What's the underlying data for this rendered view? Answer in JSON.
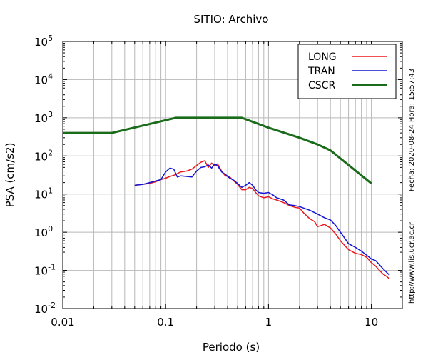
{
  "chart_data": {
    "type": "line",
    "title": "SITIO: Archivo",
    "xlabel": "Periodo (s)",
    "ylabel": "PSA (cm/s2)",
    "x_scale": "log",
    "y_scale": "log",
    "xlim": [
      0.01,
      20
    ],
    "ylim": [
      0.01,
      100000
    ],
    "x_ticks": [
      {
        "value": 0.01,
        "label": "0.01"
      },
      {
        "value": 0.1,
        "label": "0.1"
      },
      {
        "value": 1,
        "label": "1"
      },
      {
        "value": 10,
        "label": "10"
      }
    ],
    "y_ticks": [
      {
        "value": 0.01,
        "base": "10",
        "exp": "-2"
      },
      {
        "value": 0.1,
        "base": "10",
        "exp": "-1"
      },
      {
        "value": 1,
        "base": "10",
        "exp": "0"
      },
      {
        "value": 10,
        "base": "10",
        "exp": "1"
      },
      {
        "value": 100,
        "base": "10",
        "exp": "2"
      },
      {
        "value": 1000,
        "base": "10",
        "exp": "3"
      },
      {
        "value": 10000,
        "base": "10",
        "exp": "4"
      },
      {
        "value": 100000,
        "base": "10",
        "exp": "5"
      }
    ],
    "grid": true,
    "legend_position": "top-right",
    "side_annotations": {
      "date": "Fecha: 2020-08-24 Hora: 15:57:43",
      "url": "http://www.lis.ucr.ac.cr"
    },
    "series": [
      {
        "name": "LONG",
        "color": "#e8191c",
        "x": [
          0.05,
          0.06,
          0.07,
          0.08,
          0.09,
          0.1,
          0.11,
          0.12,
          0.14,
          0.16,
          0.18,
          0.2,
          0.22,
          0.24,
          0.26,
          0.28,
          0.3,
          0.32,
          0.35,
          0.38,
          0.42,
          0.46,
          0.5,
          0.55,
          0.6,
          0.65,
          0.7,
          0.75,
          0.8,
          0.9,
          1.0,
          1.1,
          1.2,
          1.4,
          1.6,
          1.8,
          2.0,
          2.2,
          2.5,
          2.8,
          3.0,
          3.5,
          4.0,
          4.5,
          5.0,
          5.5,
          6.0,
          7.0,
          8.0,
          9.0,
          10.0,
          11.0,
          12.0,
          13.0,
          14.0,
          15.0
        ],
        "y": [
          17,
          18,
          19,
          21,
          24,
          26,
          29,
          31,
          38,
          40,
          45,
          56,
          68,
          75,
          50,
          65,
          55,
          62,
          40,
          30,
          28,
          22,
          18,
          13,
          13,
          15,
          14,
          11,
          9,
          8,
          8.5,
          7.5,
          7,
          6,
          5,
          4.5,
          4.3,
          3.2,
          2.3,
          1.9,
          1.4,
          1.6,
          1.3,
          0.9,
          0.6,
          0.45,
          0.35,
          0.28,
          0.26,
          0.22,
          0.16,
          0.13,
          0.1,
          0.08,
          0.07,
          0.06
        ]
      },
      {
        "name": "TRAN",
        "color": "#1414d6",
        "x": [
          0.05,
          0.06,
          0.07,
          0.08,
          0.09,
          0.1,
          0.11,
          0.12,
          0.13,
          0.14,
          0.16,
          0.18,
          0.2,
          0.22,
          0.24,
          0.26,
          0.28,
          0.3,
          0.32,
          0.35,
          0.38,
          0.42,
          0.46,
          0.5,
          0.55,
          0.6,
          0.65,
          0.7,
          0.75,
          0.8,
          0.9,
          1.0,
          1.1,
          1.2,
          1.4,
          1.6,
          1.8,
          2.0,
          2.5,
          3.0,
          3.5,
          4.0,
          4.5,
          5.0,
          5.5,
          6.0,
          7.0,
          8.0,
          9.0,
          10.0,
          11.0,
          12.0,
          13.0,
          14.0,
          15.0
        ],
        "y": [
          17,
          18,
          20,
          22,
          24,
          38,
          48,
          45,
          28,
          30,
          29,
          28,
          40,
          50,
          52,
          58,
          48,
          62,
          55,
          38,
          33,
          26,
          23,
          19,
          15,
          17,
          20,
          17,
          13,
          11,
          10.5,
          11,
          9.5,
          8,
          7,
          5.2,
          5,
          4.7,
          3.8,
          3,
          2.4,
          2.1,
          1.5,
          1.0,
          0.7,
          0.5,
          0.4,
          0.32,
          0.25,
          0.2,
          0.18,
          0.14,
          0.11,
          0.09,
          0.075
        ]
      },
      {
        "name": "CSCR",
        "color": "#1a6b1a",
        "x": [
          0.01,
          0.03,
          0.125,
          0.55,
          1.0,
          2.0,
          3.0,
          4.0,
          10.0
        ],
        "y": [
          400,
          400,
          1000,
          1000,
          550,
          300,
          200,
          140,
          19
        ]
      }
    ]
  }
}
